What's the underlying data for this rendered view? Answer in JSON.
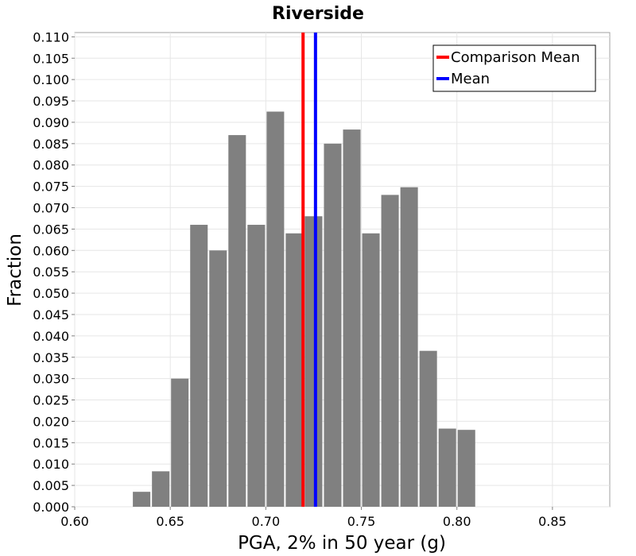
{
  "chart_data": {
    "type": "bar",
    "title": "Riverside",
    "xlabel": "PGA, 2% in 50 year (g)",
    "ylabel": "Fraction",
    "xlim": [
      0.6,
      0.88
    ],
    "ylim": [
      0,
      0.111
    ],
    "bin_width": 0.01,
    "xticks": [
      "0.60",
      "0.65",
      "0.70",
      "0.75",
      "0.80",
      "0.85"
    ],
    "yticks": [
      "0.000",
      "0.005",
      "0.010",
      "0.015",
      "0.020",
      "0.025",
      "0.030",
      "0.035",
      "0.040",
      "0.045",
      "0.050",
      "0.055",
      "0.060",
      "0.065",
      "0.070",
      "0.075",
      "0.080",
      "0.085",
      "0.090",
      "0.095",
      "0.100",
      "0.105",
      "0.110"
    ],
    "bins": [
      {
        "x": 0.635,
        "value": 0.0035
      },
      {
        "x": 0.645,
        "value": 0.0083
      },
      {
        "x": 0.655,
        "value": 0.03
      },
      {
        "x": 0.665,
        "value": 0.066
      },
      {
        "x": 0.675,
        "value": 0.06
      },
      {
        "x": 0.685,
        "value": 0.087
      },
      {
        "x": 0.695,
        "value": 0.066
      },
      {
        "x": 0.705,
        "value": 0.0925
      },
      {
        "x": 0.715,
        "value": 0.064
      },
      {
        "x": 0.725,
        "value": 0.068
      },
      {
        "x": 0.735,
        "value": 0.085
      },
      {
        "x": 0.745,
        "value": 0.0883
      },
      {
        "x": 0.755,
        "value": 0.064
      },
      {
        "x": 0.765,
        "value": 0.073
      },
      {
        "x": 0.775,
        "value": 0.0748
      },
      {
        "x": 0.785,
        "value": 0.0365
      },
      {
        "x": 0.795,
        "value": 0.0183
      },
      {
        "x": 0.805,
        "value": 0.018
      }
    ],
    "reference_lines": [
      {
        "name": "Comparison Mean",
        "x": 0.7195,
        "color": "#ff0000"
      },
      {
        "name": "Mean",
        "x": 0.726,
        "color": "#0000ff"
      }
    ],
    "bar_color": "#808080",
    "grid": true,
    "legend": {
      "position": "top-right",
      "entries": [
        {
          "label": "Comparison Mean",
          "color": "#ff0000"
        },
        {
          "label": "Mean",
          "color": "#0000ff"
        }
      ]
    }
  }
}
